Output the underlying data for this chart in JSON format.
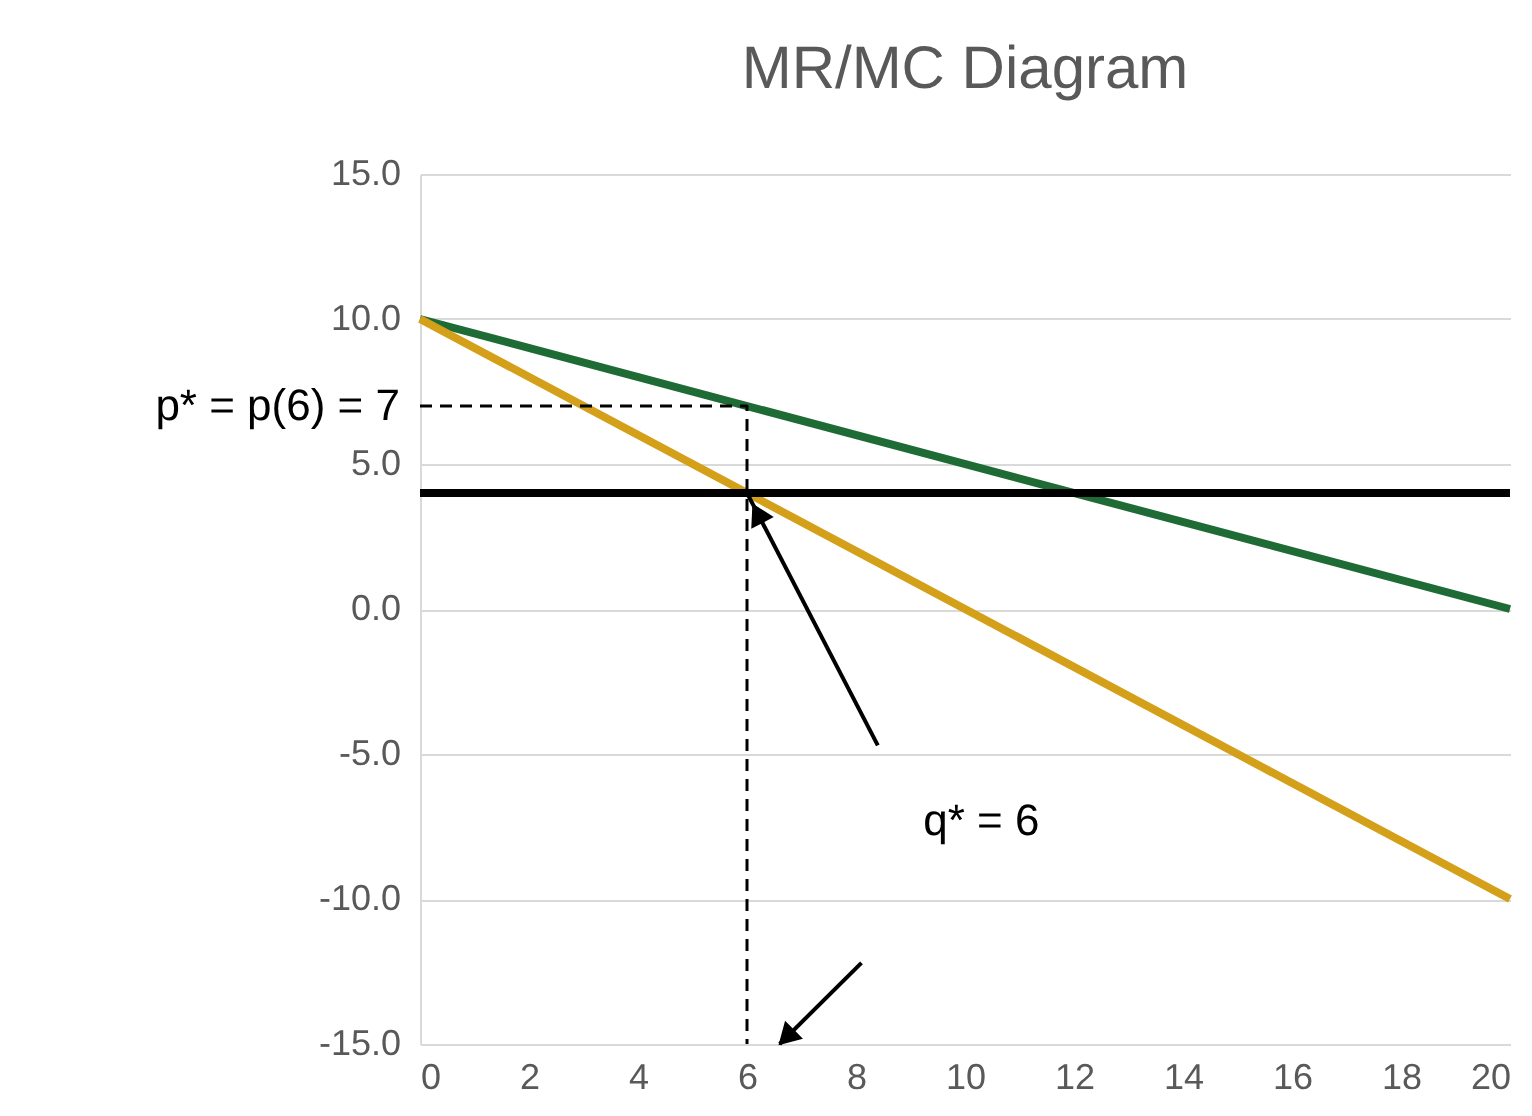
{
  "chart_data": {
    "type": "line",
    "title": "MR/MC Diagram",
    "xlim": [
      0,
      20
    ],
    "xticks": [
      0,
      2,
      4,
      6,
      8,
      10,
      12,
      14,
      16,
      18,
      20
    ],
    "ylim": [
      -15,
      15
    ],
    "yticks": [
      {
        "value": -15,
        "label": "-15.0"
      },
      {
        "value": -10,
        "label": "-10.0"
      },
      {
        "value": -5,
        "label": "-5.0"
      },
      {
        "value": 0,
        "label": "0.0"
      },
      {
        "value": 5,
        "label": "5.0"
      },
      {
        "value": 10,
        "label": "10.0"
      },
      {
        "value": 15,
        "label": "15.0"
      }
    ],
    "grid": "y",
    "series": [
      {
        "color": "#1f6b35",
        "x": [
          0,
          20
        ],
        "values": [
          10,
          0
        ],
        "line_style": "solid"
      },
      {
        "color": "#d4a01a",
        "x": [
          0,
          20
        ],
        "values": [
          10,
          -10
        ],
        "line_style": "solid"
      },
      {
        "color": "#000000",
        "x": [
          0,
          20
        ],
        "values": [
          4,
          4
        ],
        "line_style": "solid"
      },
      {
        "color": "#000000",
        "x": [
          0,
          6,
          6
        ],
        "values": [
          7,
          7,
          -15
        ],
        "line_style": "dashed"
      }
    ],
    "annotations": [
      {
        "text": "p* = p(6) = 7",
        "x": 0,
        "y": 7
      },
      "q* = 6"
    ]
  }
}
